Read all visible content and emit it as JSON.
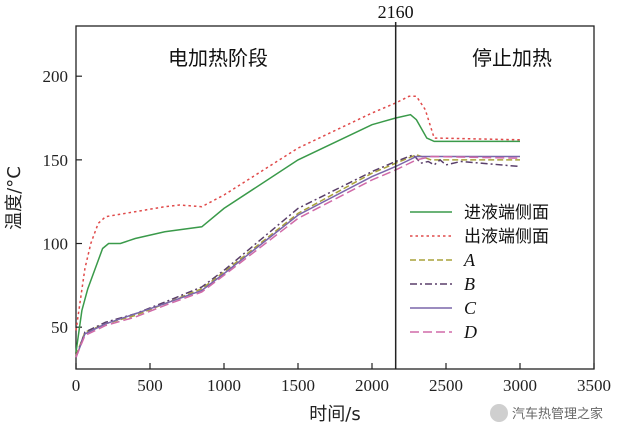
{
  "chart_data": {
    "type": "line",
    "xlabel": "时间/s",
    "ylabel": "温度/°C",
    "xlim": [
      0,
      3500
    ],
    "ylim": [
      25,
      230
    ],
    "xticks": [
      0,
      500,
      1000,
      1500,
      2000,
      2500,
      3000,
      3500
    ],
    "yticks": [
      50,
      100,
      150,
      200
    ],
    "grid": false,
    "legend_position": "right",
    "marker_line": {
      "x": 2160,
      "label": "2160"
    },
    "phase_labels": {
      "left": "电加热阶段",
      "right": "停止加热"
    },
    "series": [
      {
        "name": "进液端侧面",
        "color": "#3a9a4a",
        "dash": "solid",
        "points": [
          [
            0,
            35
          ],
          [
            40,
            60
          ],
          [
            80,
            73
          ],
          [
            130,
            85
          ],
          [
            180,
            97
          ],
          [
            220,
            100
          ],
          [
            300,
            100
          ],
          [
            400,
            103
          ],
          [
            600,
            107
          ],
          [
            850,
            110
          ],
          [
            1000,
            121
          ],
          [
            1500,
            150
          ],
          [
            2000,
            171
          ],
          [
            2160,
            175
          ],
          [
            2260,
            177
          ],
          [
            2300,
            174
          ],
          [
            2370,
            163
          ],
          [
            2420,
            161
          ],
          [
            3000,
            161
          ]
        ]
      },
      {
        "name": "出液端侧面",
        "color": "#e04a4a",
        "dash": "dots",
        "points": [
          [
            0,
            48
          ],
          [
            60,
            85
          ],
          [
            100,
            100
          ],
          [
            150,
            112
          ],
          [
            200,
            116
          ],
          [
            400,
            119
          ],
          [
            600,
            122
          ],
          [
            700,
            123
          ],
          [
            850,
            122
          ],
          [
            1000,
            129
          ],
          [
            1500,
            157
          ],
          [
            2000,
            178
          ],
          [
            2160,
            184
          ],
          [
            2250,
            188
          ],
          [
            2300,
            188
          ],
          [
            2360,
            180
          ],
          [
            2420,
            163
          ],
          [
            2450,
            163
          ],
          [
            3000,
            162
          ]
        ]
      },
      {
        "name": "A",
        "color": "#a9a23a",
        "dash": "dash",
        "points": [
          [
            0,
            33
          ],
          [
            60,
            47
          ],
          [
            200,
            52
          ],
          [
            400,
            57
          ],
          [
            600,
            64
          ],
          [
            850,
            73
          ],
          [
            1000,
            83
          ],
          [
            1500,
            118
          ],
          [
            2000,
            142
          ],
          [
            2160,
            148
          ],
          [
            2300,
            153
          ],
          [
            2400,
            150
          ],
          [
            3000,
            150
          ]
        ]
      },
      {
        "name": "B",
        "color": "#5a3f6a",
        "dash": "dashdot",
        "points": [
          [
            0,
            32
          ],
          [
            60,
            47
          ],
          [
            200,
            53
          ],
          [
            400,
            58
          ],
          [
            600,
            65
          ],
          [
            850,
            74
          ],
          [
            1000,
            84
          ],
          [
            1500,
            121
          ],
          [
            2000,
            143
          ],
          [
            2160,
            149
          ],
          [
            2280,
            153
          ],
          [
            2330,
            148
          ],
          [
            2380,
            149
          ],
          [
            2420,
            147
          ],
          [
            2460,
            150
          ],
          [
            2500,
            147
          ],
          [
            2600,
            149
          ],
          [
            3000,
            146
          ]
        ]
      },
      {
        "name": "C",
        "color": "#7a66aa",
        "dash": "solid",
        "points": [
          [
            0,
            32
          ],
          [
            60,
            46
          ],
          [
            200,
            52
          ],
          [
            400,
            58
          ],
          [
            600,
            64
          ],
          [
            850,
            72
          ],
          [
            1000,
            82
          ],
          [
            1500,
            117
          ],
          [
            2000,
            140
          ],
          [
            2160,
            146
          ],
          [
            2300,
            152
          ],
          [
            2400,
            152
          ],
          [
            3000,
            152
          ]
        ]
      },
      {
        "name": "D",
        "color": "#d06aa8",
        "dash": "longdash",
        "points": [
          [
            0,
            32
          ],
          [
            60,
            45
          ],
          [
            200,
            51
          ],
          [
            400,
            56
          ],
          [
            600,
            63
          ],
          [
            850,
            71
          ],
          [
            1000,
            81
          ],
          [
            1500,
            115
          ],
          [
            2000,
            138
          ],
          [
            2160,
            144
          ],
          [
            2300,
            150
          ],
          [
            2400,
            152
          ],
          [
            3000,
            151
          ]
        ]
      }
    ]
  },
  "watermark": "汽车热管理之家"
}
